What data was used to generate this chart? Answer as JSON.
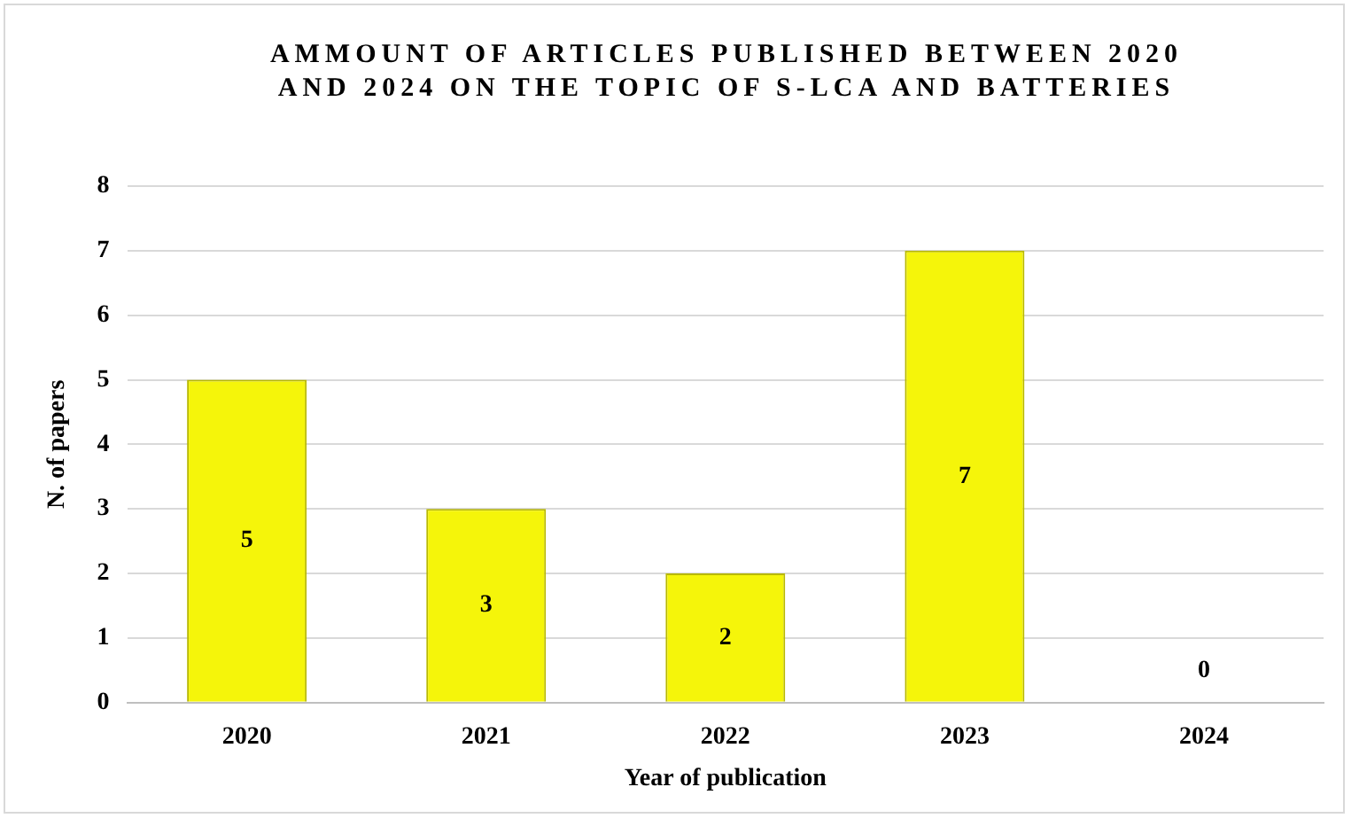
{
  "chart_data": {
    "type": "bar",
    "title": "AMMOUNT OF ARTICLES PUBLISHED BETWEEN 2020 AND 2024 ON THE TOPIC OF S-LCA AND BATTERIES",
    "xlabel": "Year of publication",
    "ylabel": "N. of papers",
    "categories": [
      "2020",
      "2021",
      "2022",
      "2023",
      "2024"
    ],
    "values": [
      5,
      3,
      2,
      7,
      0
    ],
    "color": "#f5f50a",
    "ylim": [
      0,
      8
    ],
    "yticks": [
      0,
      1,
      2,
      3,
      4,
      5,
      6,
      7,
      8
    ],
    "grid": "y",
    "data_labels": true
  }
}
